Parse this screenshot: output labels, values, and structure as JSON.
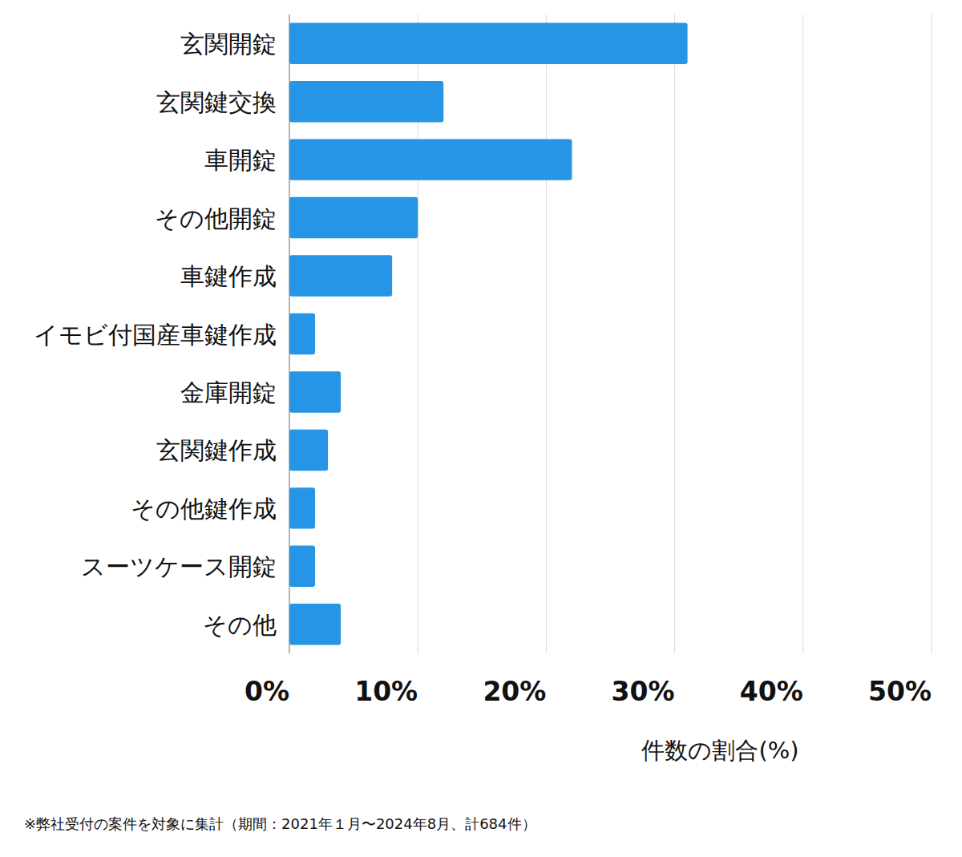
{
  "chart_data": {
    "type": "bar",
    "orientation": "horizontal",
    "categories": [
      "玄関開錠",
      "玄関鍵交換",
      "車開錠",
      "その他開錠",
      "車鍵作成",
      "イモビ付国産車鍵作成",
      "金庫開錠",
      "玄関鍵作成",
      "その他鍵作成",
      "スーツケース開錠",
      "その他"
    ],
    "values": [
      31,
      12,
      22,
      10,
      8,
      2,
      4,
      3,
      2,
      2,
      4
    ],
    "color": "#2695e5",
    "x_label": "件数の割合(%)",
    "xlim": [
      0,
      50
    ],
    "xticks": [
      {
        "value": 0,
        "label": "0%"
      },
      {
        "value": 10,
        "label": "10%"
      },
      {
        "value": 20,
        "label": "20%"
      },
      {
        "value": 30,
        "label": "30%"
      },
      {
        "value": 40,
        "label": "40%"
      },
      {
        "value": 50,
        "label": "50%"
      }
    ],
    "grid": true,
    "footnote": "※弊社受付の案件を対象に集計（期間：2021年１月〜2024年8月、計684件）"
  }
}
